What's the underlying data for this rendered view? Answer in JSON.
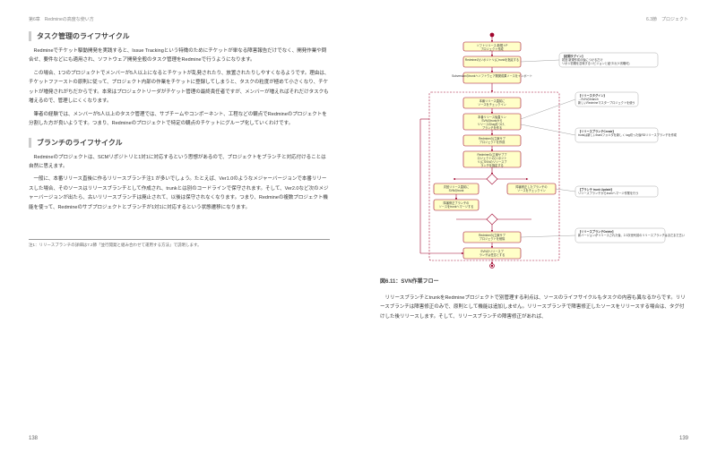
{
  "left": {
    "header": "第6章　Redmineの高度な使い方",
    "sec1_title": "タスク管理のライフサイクル",
    "p1": "Redmineでチケット駆動開発を実践すると、Issue Trackingという特徴のためにチケットが単なる障害報告だけでなく、開発作業や問合せ、要件などにも適用され、ソフトウェア開発全般のタスク管理をRedmineで行うようになります。",
    "p2": "この場合、1つのプロジェクトでメンバーが5人以上になるとチケットが乱発されたり、放置されたりしやすくなるようです。理由は、チケットファーストの原則に従って、プロジェクト内部の作業をチケットに登録してしまうと、タスクの粒度が極めて小さくなり、チケットが増発されがちだからです。本来はプロジェクトリーダがチケット管理の最終責任者ですが、メンバーが増えればそれだけタスクも増えるので、管理しにくくなります。",
    "p3": "筆者の経験では、メンバーが5人以上のタスク管理では、サブチームやコンポーネント、工程などの観点でRedmineのプロジェクトを分割した方が良いようです。つまり、Redmineのプロジェクトで特定の観点のチケットにグループ化していくわけです。",
    "sec2_title": "ブランチのライフサイクル",
    "p4": "Redmineのプロジェクトは、SCMリポジトリと1対1に対応するという思想があるので、プロジェクトをブランチと対応付けることは自然に思えます。",
    "p5": "一般に、本番リリース直後に作るリリースブランチ注1 が多いでしょう。たとえば、Ver1.0のようなメジャーバージョンで本番リリースした場合、そのソースはリリースブランチとして作成され、trunkとは別のコードラインで保守されます。そして、Ver2.0など次のメジャーバージョンが出たら、古いリリースブランチは廃止されて、以後は保守されなくなります。つまり、Redmineの複数プロジェクト機能を使って、Redmineのサブプロジェクトとブランチが1対1に対応するという状態遷移になります。",
    "footnote": "注1：リリースブランチの詳細は7.2節「並行開発と組み合わせて運用する方法」で説明します。",
    "pagenum": "138"
  },
  "right": {
    "header": "6.3節　プロジェクト",
    "caption": "図6.11：SVN作業フロー",
    "p1": "リリースブランチとtrunkをRedmineプロジェクトで別管理する利点は、ソースのライフサイクルもタスクの内容も異なるからです。リリースブランチは障害修正のみで、原則として機能は追加しません。リリースブランチで障害修正したソースをリリースする場合は、タグ付けした後リリースします。そして、リリースブランチの障害修正があれば、",
    "pagenum": "139",
    "flow": {
      "bg": "#ffffff",
      "node_fill": "#ffffc8",
      "node_stroke": "#a0052d",
      "callouts": [
        {
          "title": "【初期タグイン】",
          "body": "初回 新規作成の後につけるだけ\\nリポジ初期を意味するリビジョンと紐づけ(※省略可)"
        },
        {
          "title": "【リリースタグイン】",
          "body": "→SVNのbranch\\n新しいRedmineマスタープロジェクトを使う"
        },
        {
          "title": "【リリースブランチCreate】",
          "body": "trunkは新しいtrunkフォルダを新しく tag切った後RDリリースブランチを作成"
        },
        {
          "title": "【ブランチ trunk Update】",
          "body": "リリースブランチからtrunkへマージ作業を行う"
        },
        {
          "title": "【リリースブランチDelete】",
          "body": "新バージョンがリリースされた後、2-3次世代前のリリースブランチはまだまだ古いと削除"
        }
      ],
      "nodes": [
        "ソフトリリース:新規トP\\nプロジェクト作成",
        "Redmineの(リポジトリ)にtrunkを指定する",
        "Subversionのtrunkへソフトウェア開発成果ソースをインポート",
        "本番リリース直前に\\nソースをチェックイン",
        "本番リリース後直リン\\nSVNのtrunkから\\nリリースのtagをつけ、\\nブランチを作る",
        "Redmineの(立案サブ\\nプロジェクトを作成",
        "Redmineの(立案サブプ\\nロジェクトの(リポジト\\nリ)にSVNのリリースブ\\nランチを指定する",
        "次回リリース直前に\\nSVNのtrunk",
        "障害修正ブランチの\\nソースをtrunkへマージする",
        "障害修正したブランチの\\nソースをチェックイン",
        "Redmineの(立案サブ\\nプロジェクトを削除",
        "SVNのリリースブ\\nランチは任意とする"
      ]
    }
  }
}
